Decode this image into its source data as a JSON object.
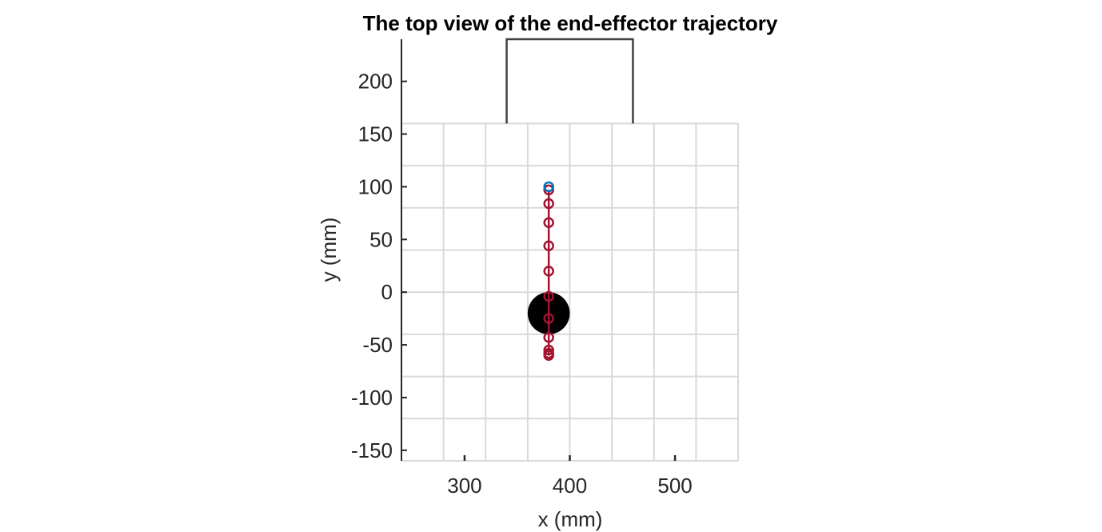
{
  "chart_data": {
    "type": "line",
    "title": "The top view of the end-effector trajectory",
    "xlabel": "x (mm)",
    "ylabel": "y (mm)",
    "xlim": [
      240,
      560
    ],
    "ylim": [
      -160,
      240
    ],
    "xticks": [
      300,
      400,
      500
    ],
    "yticks": [
      -150,
      -100,
      -50,
      0,
      50,
      100,
      150,
      200
    ],
    "grid": true,
    "grid_spacing": 40,
    "grid_range": {
      "x": [
        240,
        560
      ],
      "y": [
        -160,
        160
      ]
    },
    "series": [
      {
        "style": "line-with-circle-markers",
        "color": "#A2142F",
        "x": [
          380,
          380,
          380,
          380,
          380,
          380,
          380,
          380,
          380,
          380,
          380
        ],
        "y": [
          97,
          84,
          66,
          44,
          20,
          -4,
          -25,
          -43,
          -55,
          -58,
          -60
        ]
      },
      {
        "style": "circle-marker",
        "color": "#0072BD",
        "x": [
          380
        ],
        "y": [
          100
        ]
      }
    ],
    "shapes": [
      {
        "kind": "filled-circle",
        "color": "#000000",
        "center": [
          380,
          -20
        ],
        "radius": 20
      },
      {
        "kind": "open-rectangle",
        "color": "#404040",
        "x": [
          340,
          460
        ],
        "y": [
          160,
          240
        ]
      }
    ]
  }
}
